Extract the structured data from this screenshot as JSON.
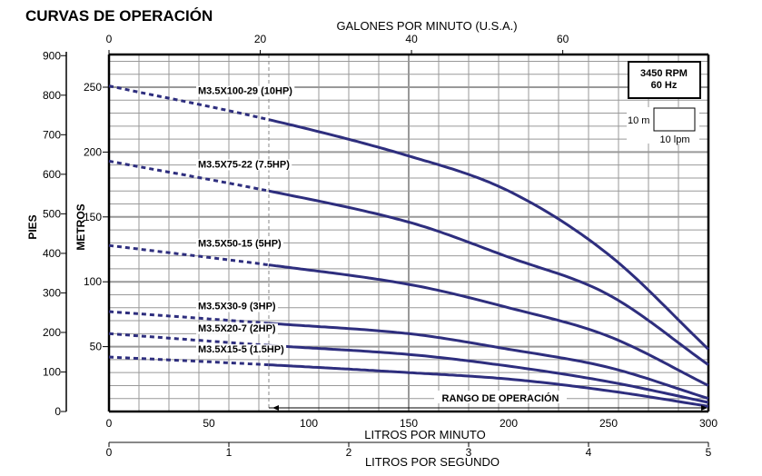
{
  "chart_data": {
    "type": "line",
    "title": "CURVAS DE OPERACIÓN",
    "xlabel": "LITROS POR MINUTO",
    "x2label_top": "GALONES POR MINUTO (U.S.A.)",
    "x3label_bottom": "LITROS POR SEGUNDO",
    "ylabel": "METROS",
    "y2label": "PIES",
    "xlim": [
      0,
      300
    ],
    "ylim": [
      0,
      250
    ],
    "xticks": [
      0,
      50,
      100,
      150,
      200,
      250,
      300
    ],
    "yticks": [
      50,
      100,
      150,
      200,
      250
    ],
    "pies_ticks": [
      0,
      100,
      200,
      300,
      400,
      500,
      600,
      700,
      800,
      900
    ],
    "gpm_ticks": [
      0,
      20,
      40,
      60
    ],
    "lps_ticks": [
      0,
      1,
      2,
      3,
      4,
      5
    ],
    "grid": true,
    "operating_range_label": "RANGO DE OPERACIÓN",
    "operating_range_start_lpm": 80,
    "info_box": {
      "rpm": "3450 RPM",
      "hz": "60 Hz"
    },
    "scale_box": {
      "y": "10 m",
      "x": "10 lpm"
    },
    "line_color": "#2e2e7e",
    "series": [
      {
        "name": "M3.5X100-29 (10HP)",
        "x": [
          0,
          80,
          150,
          200,
          250,
          300
        ],
        "y": [
          251,
          225,
          197,
          170,
          121,
          48
        ]
      },
      {
        "name": "M3.5X75-22 (7.5HP)",
        "x": [
          0,
          80,
          150,
          200,
          250,
          300
        ],
        "y": [
          193,
          170,
          146,
          119,
          90,
          36
        ]
      },
      {
        "name": "M3.5X50-15 (5HP)",
        "x": [
          0,
          80,
          150,
          200,
          250,
          300
        ],
        "y": [
          128,
          113,
          98,
          80,
          58,
          20
        ]
      },
      {
        "name": "M3.5X30-9 (3HP)",
        "x": [
          0,
          80,
          150,
          200,
          250,
          300
        ],
        "y": [
          77,
          68,
          60,
          48,
          34,
          10
        ]
      },
      {
        "name": "M3.5X20-7 (2HP)",
        "x": [
          0,
          80,
          150,
          200,
          250,
          300
        ],
        "y": [
          60,
          51,
          44,
          35,
          23,
          7
        ]
      },
      {
        "name": "M3.5X15-5 (1.5HP)",
        "x": [
          0,
          80,
          150,
          200,
          250,
          300
        ],
        "y": [
          42,
          36,
          30,
          25,
          16,
          4
        ]
      }
    ]
  }
}
